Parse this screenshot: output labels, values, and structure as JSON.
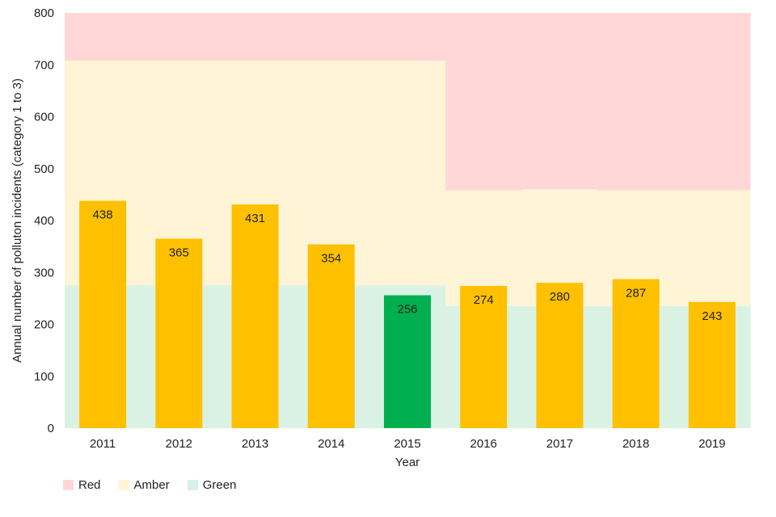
{
  "chart_data": {
    "type": "bar",
    "xlabel": "Year",
    "ylabel": "Annual number of polluton incidents (category 1 to 3)",
    "ylim": [
      0,
      800
    ],
    "yticks": [
      0,
      100,
      200,
      300,
      400,
      500,
      600,
      700,
      800
    ],
    "categories": [
      "2011",
      "2012",
      "2013",
      "2014",
      "2015",
      "2016",
      "2017",
      "2018",
      "2019"
    ],
    "values": [
      438,
      365,
      431,
      354,
      256,
      274,
      280,
      287,
      243
    ],
    "bar_colors": [
      "#ffc000",
      "#ffc000",
      "#ffc000",
      "#ffc000",
      "#00b050",
      "#ffc000",
      "#ffc000",
      "#ffc000",
      "#ffc000"
    ],
    "bands": {
      "green_upper": [
        275,
        275,
        275,
        275,
        275,
        235,
        235,
        235,
        235
      ],
      "amber_upper": [
        708,
        708,
        708,
        708,
        708,
        458,
        460,
        458,
        458
      ]
    },
    "legend": [
      {
        "label": "Red",
        "color": "#ffd7d7"
      },
      {
        "label": "Amber",
        "color": "#fff4d6"
      },
      {
        "label": "Green",
        "color": "#d9f2e3"
      }
    ],
    "legend_position": "bottom-left",
    "grid": false
  }
}
